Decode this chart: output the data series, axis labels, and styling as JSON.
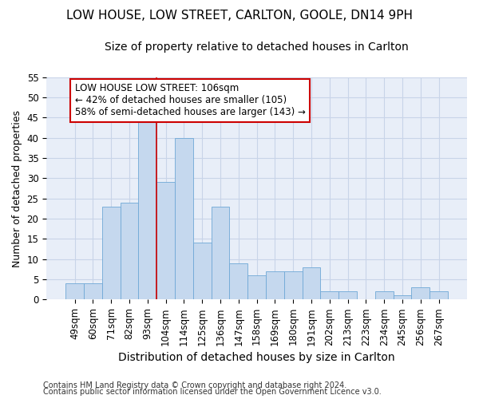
{
  "title": "LOW HOUSE, LOW STREET, CARLTON, GOOLE, DN14 9PH",
  "subtitle": "Size of property relative to detached houses in Carlton",
  "xlabel": "Distribution of detached houses by size in Carlton",
  "ylabel": "Number of detached properties",
  "categories": [
    "49sqm",
    "60sqm",
    "71sqm",
    "82sqm",
    "93sqm",
    "104sqm",
    "114sqm",
    "125sqm",
    "136sqm",
    "147sqm",
    "158sqm",
    "169sqm",
    "180sqm",
    "191sqm",
    "202sqm",
    "213sqm",
    "223sqm",
    "234sqm",
    "245sqm",
    "256sqm",
    "267sqm"
  ],
  "values": [
    4,
    4,
    23,
    24,
    46,
    29,
    40,
    14,
    23,
    9,
    6,
    7,
    7,
    8,
    2,
    2,
    0,
    2,
    1,
    3,
    2
  ],
  "bar_color": "#c5d8ee",
  "bar_edge_color": "#6fa8d6",
  "grid_color": "#c8d4e8",
  "bg_color": "#e8eef8",
  "subject_line_color": "#cc0000",
  "annotation_text": "LOW HOUSE LOW STREET: 106sqm\n← 42% of detached houses are smaller (105)\n58% of semi-detached houses are larger (143) →",
  "annotation_box_color": "#cc0000",
  "ylim": [
    0,
    55
  ],
  "yticks": [
    0,
    5,
    10,
    15,
    20,
    25,
    30,
    35,
    40,
    45,
    50,
    55
  ],
  "footer1": "Contains HM Land Registry data © Crown copyright and database right 2024.",
  "footer2": "Contains public sector information licensed under the Open Government Licence v3.0.",
  "title_fontsize": 11,
  "subtitle_fontsize": 10,
  "ylabel_fontsize": 9,
  "xlabel_fontsize": 10,
  "tick_fontsize": 8.5,
  "footer_fontsize": 7,
  "annot_fontsize": 8.5,
  "subject_bar_idx": 5
}
